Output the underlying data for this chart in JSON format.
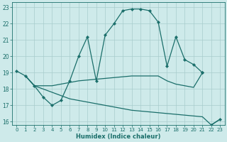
{
  "xlabel": "Humidex (Indice chaleur)",
  "xlim": [
    -0.5,
    23.5
  ],
  "ylim": [
    15.8,
    23.3
  ],
  "yticks": [
    16,
    17,
    18,
    19,
    20,
    21,
    22,
    23
  ],
  "xticks": [
    0,
    1,
    2,
    3,
    4,
    5,
    6,
    7,
    8,
    9,
    10,
    11,
    12,
    13,
    14,
    15,
    16,
    17,
    18,
    19,
    20,
    21,
    22,
    23
  ],
  "bg_color": "#ceeaea",
  "grid_color": "#a8cccc",
  "line_color": "#1a6e6a",
  "line1_x": [
    0,
    1
  ],
  "line1_y": [
    19.1,
    18.8
  ],
  "line2_x": [
    1,
    2,
    3,
    4,
    5,
    6,
    7,
    8,
    9,
    10,
    11,
    12,
    13,
    14,
    15,
    16,
    17,
    18,
    19,
    20,
    21
  ],
  "line2_y": [
    18.8,
    18.2,
    17.5,
    17.0,
    17.3,
    18.5,
    20.0,
    21.2,
    18.5,
    21.3,
    22.0,
    22.8,
    22.9,
    22.9,
    22.8,
    22.1,
    19.4,
    21.2,
    19.8,
    19.5,
    19.0
  ],
  "line3_x": [
    1,
    2,
    3,
    4,
    5,
    6,
    7,
    8,
    9,
    10,
    11,
    12,
    13,
    14,
    15,
    16,
    17,
    18,
    19,
    20,
    21
  ],
  "line3_y": [
    18.8,
    18.2,
    18.2,
    18.2,
    18.3,
    18.4,
    18.5,
    18.55,
    18.6,
    18.65,
    18.7,
    18.75,
    18.8,
    18.8,
    18.8,
    18.8,
    18.5,
    18.3,
    18.2,
    18.1,
    19.0
  ],
  "line4_x": [
    1,
    2,
    3,
    4,
    5,
    6,
    7,
    8,
    9,
    10,
    11,
    12,
    13,
    14,
    15,
    16,
    17,
    18,
    19,
    20,
    21,
    22,
    23
  ],
  "line4_y": [
    18.8,
    18.2,
    18.0,
    17.8,
    17.6,
    17.4,
    17.3,
    17.2,
    17.1,
    17.0,
    16.9,
    16.8,
    16.7,
    16.65,
    16.6,
    16.55,
    16.5,
    16.45,
    16.4,
    16.35,
    16.3,
    15.8,
    16.15
  ],
  "marker_line1_x": [
    0,
    1
  ],
  "marker_line1_y": [
    19.1,
    18.8
  ],
  "marker_line2_x": [
    2,
    3,
    4,
    5,
    6,
    7,
    8,
    9,
    10,
    11,
    12,
    13,
    14,
    15,
    16,
    17,
    18,
    19,
    20,
    21
  ],
  "marker_line2_y": [
    18.2,
    17.5,
    17.0,
    17.3,
    18.5,
    20.0,
    21.2,
    18.5,
    21.3,
    22.0,
    22.8,
    22.9,
    22.9,
    22.8,
    22.1,
    19.4,
    21.2,
    19.8,
    19.5,
    19.0
  ],
  "marker_line3_x": [
    21
  ],
  "marker_line3_y": [
    19.0
  ],
  "marker_line4_x": [
    22,
    23
  ],
  "marker_line4_y": [
    15.8,
    16.15
  ]
}
